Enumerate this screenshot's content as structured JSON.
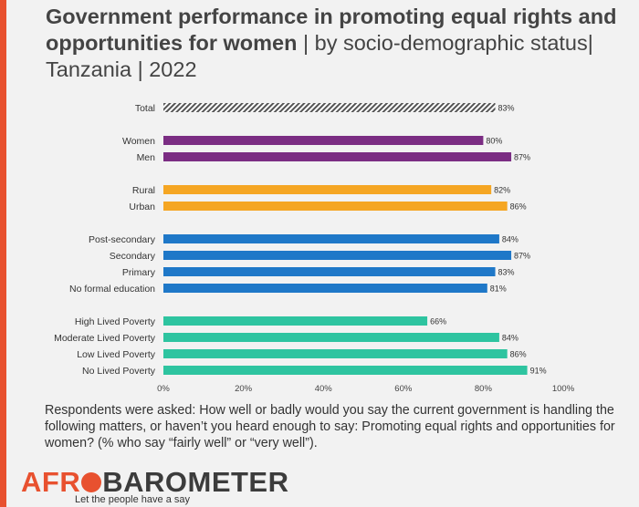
{
  "title": {
    "bold": "Government performance in promoting equal rights and opportunities for women",
    "light": " | by socio-demographic status| Tanzania | 2022"
  },
  "note": "Respondents were asked: How well or badly would you say the current government is handling the following matters, or haven’t you heard enough to say: Promoting equal rights and opportunities for women? (% who say “fairly well” or “very well”).",
  "logo": {
    "part1": "AFR",
    "part2": "BAROMETER",
    "tagline": "Let the people have a say"
  },
  "chart_data": {
    "type": "bar",
    "orientation": "horizontal",
    "xlim": [
      0,
      100
    ],
    "x_ticks": [
      "0%",
      "20%",
      "40%",
      "60%",
      "80%",
      "100%"
    ],
    "value_suffix": "%",
    "groups": [
      {
        "color": "#555555",
        "pattern": "hatched",
        "bars": [
          {
            "label": "Total",
            "value": 83
          }
        ]
      },
      {
        "color": "#7b2d83",
        "bars": [
          {
            "label": "Women",
            "value": 80
          },
          {
            "label": "Men",
            "value": 87
          }
        ]
      },
      {
        "color": "#f5a623",
        "bars": [
          {
            "label": "Rural",
            "value": 82
          },
          {
            "label": "Urban",
            "value": 86
          }
        ]
      },
      {
        "color": "#1f78c8",
        "bars": [
          {
            "label": "Post-secondary",
            "value": 84
          },
          {
            "label": "Secondary",
            "value": 87
          },
          {
            "label": "Primary",
            "value": 83
          },
          {
            "label": "No formal education",
            "value": 81
          }
        ]
      },
      {
        "color": "#2ec4a0",
        "bars": [
          {
            "label": "High Lived Poverty",
            "value": 66
          },
          {
            "label": "Moderate Lived Poverty",
            "value": 84
          },
          {
            "label": "Low Lived Poverty",
            "value": 86
          },
          {
            "label": "No Lived Poverty",
            "value": 91
          }
        ]
      }
    ]
  }
}
